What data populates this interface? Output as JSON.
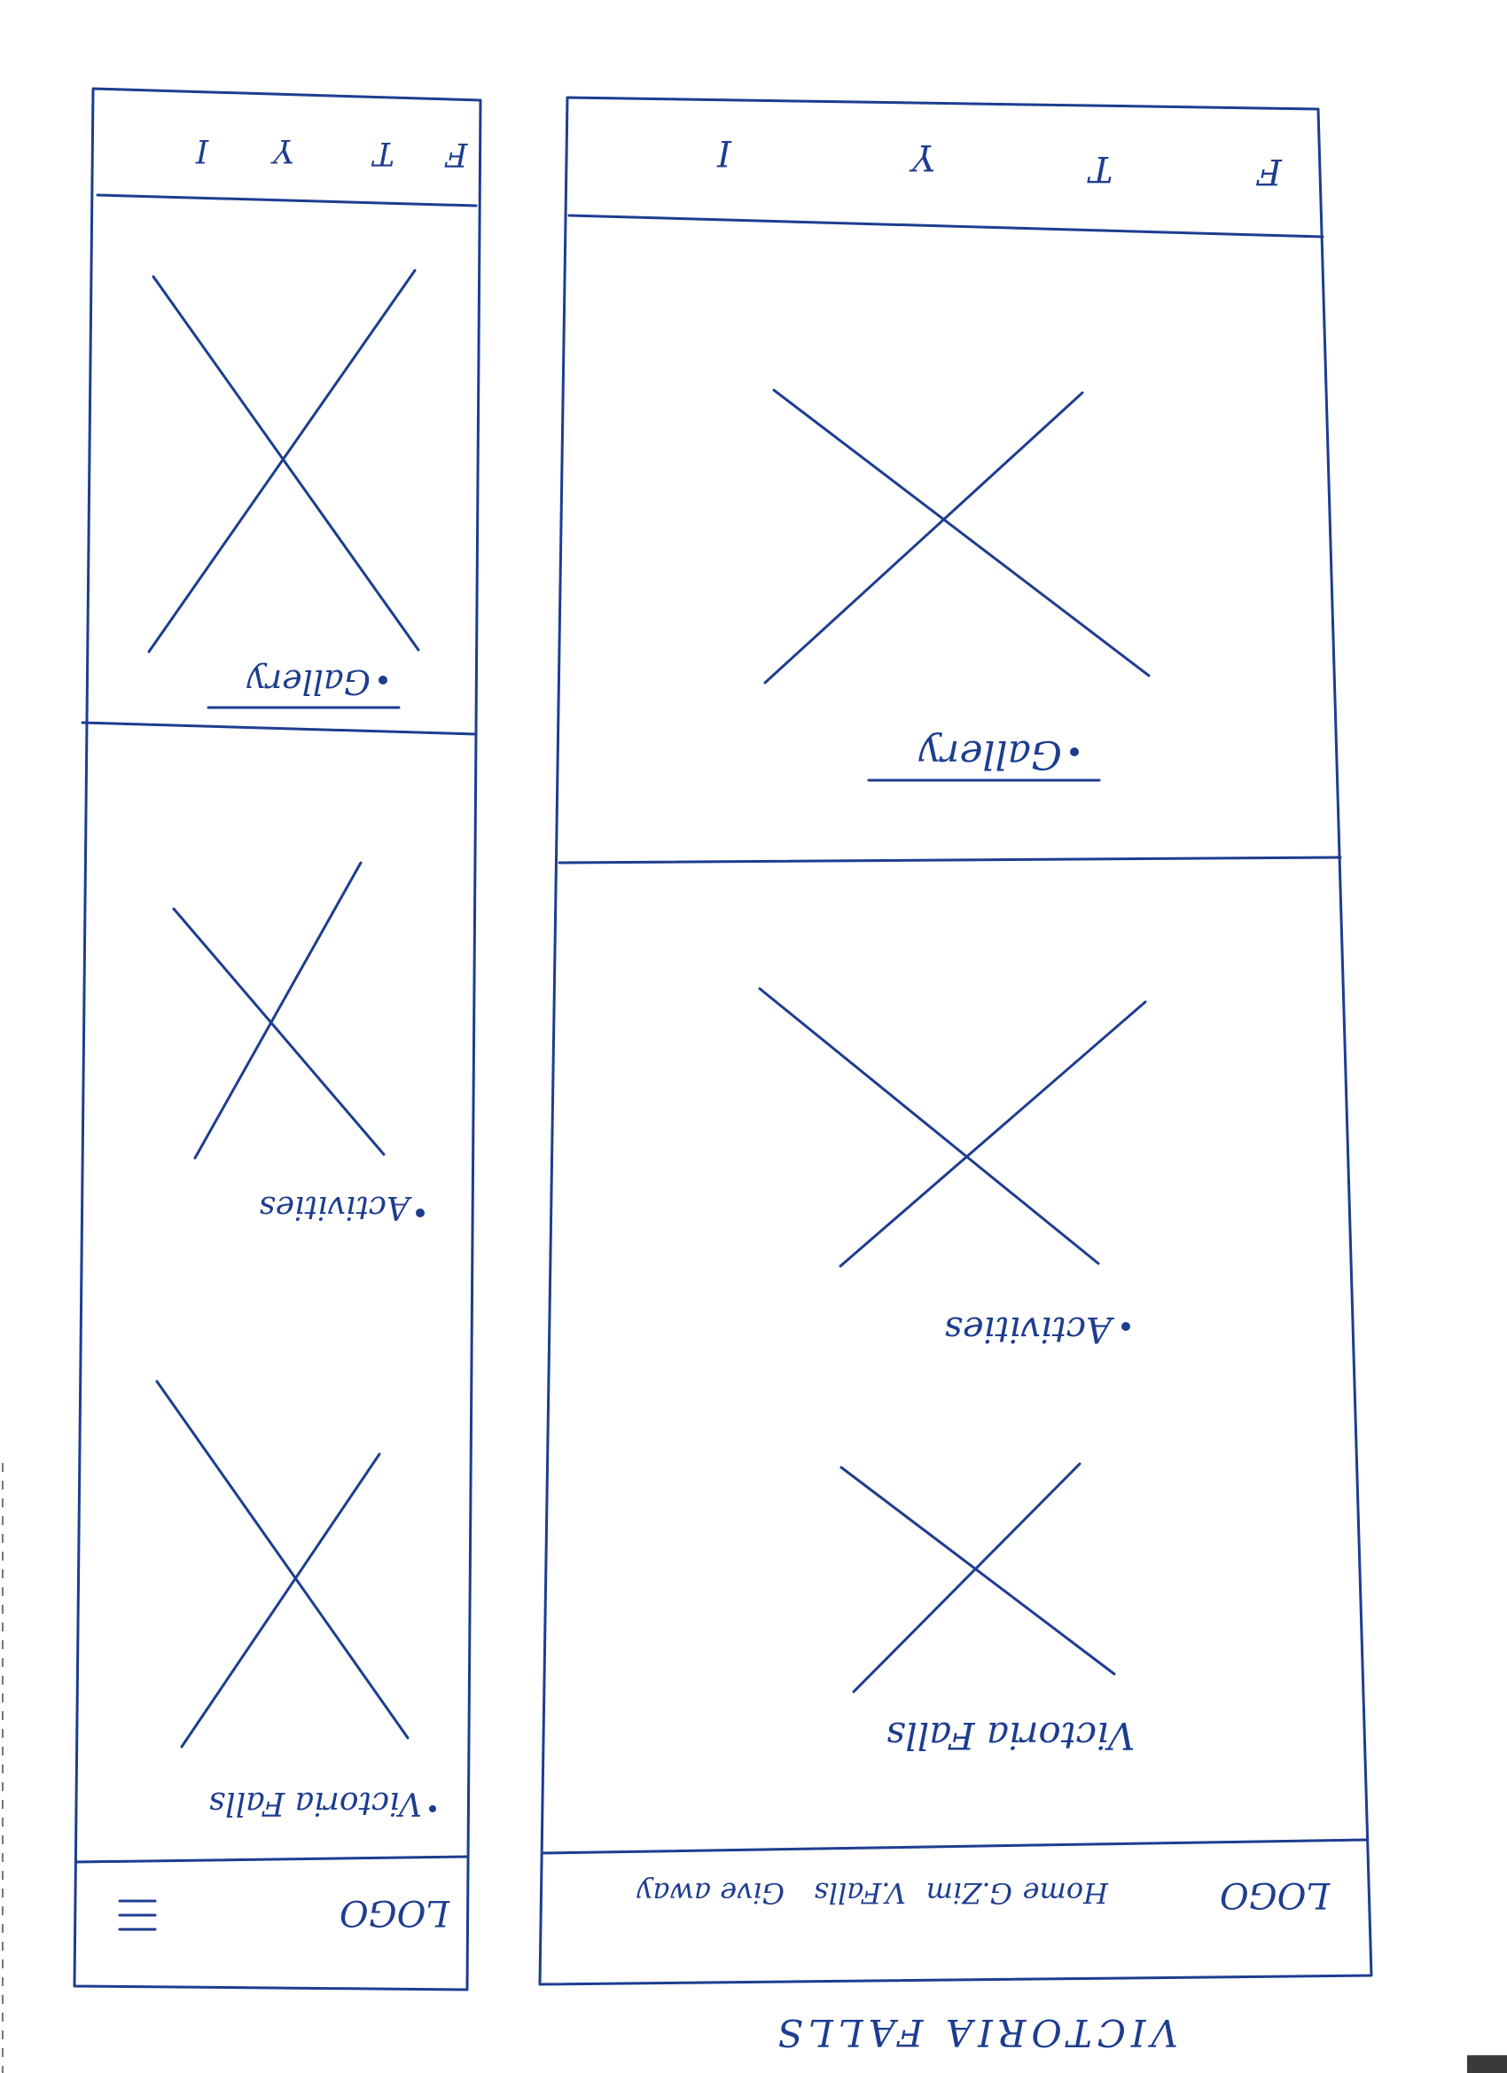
{
  "page_title": "VICTORIA FALLS",
  "desktop": {
    "header": {
      "logo": "LOGO",
      "nav": [
        "Home",
        "G.Zim",
        "V.Falls",
        "Give away"
      ]
    },
    "sections": [
      {
        "label": "Victoria Falls"
      },
      {
        "label": "Activities"
      },
      {
        "label": "Gallery"
      }
    ],
    "footer": {
      "icons": [
        "F",
        "T",
        "Y",
        "I"
      ]
    }
  },
  "mobile": {
    "header": {
      "logo": "LOGO",
      "menu_icon": "hamburger-menu-icon"
    },
    "sections": [
      {
        "label": "Victoria Falls"
      },
      {
        "label": "Activities"
      },
      {
        "label": "Gallery"
      }
    ],
    "footer": {
      "icons": [
        "F",
        "T",
        "Y",
        "I"
      ]
    }
  },
  "colors": {
    "ink": "#1d3d8f",
    "paper": "#ffffff"
  }
}
